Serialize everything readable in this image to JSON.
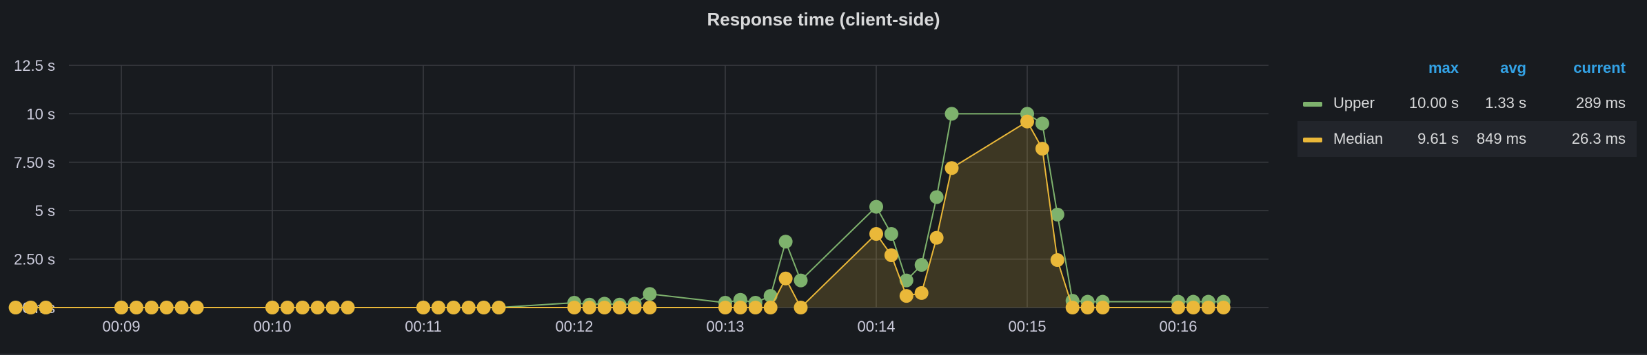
{
  "panel": {
    "title": "Response time (client-side)"
  },
  "legend": {
    "headers": {
      "max": "max",
      "avg": "avg",
      "current": "current"
    },
    "rows": [
      {
        "name": "Upper",
        "max": "10.00 s",
        "avg": "1.33 s",
        "current": "289 ms",
        "color": "#7eb26d"
      },
      {
        "name": "Median",
        "max": "9.61 s",
        "avg": "849 ms",
        "current": "26.3 ms",
        "color": "#eab839"
      }
    ]
  },
  "chart_data": {
    "type": "line",
    "title": "Response time (client-side)",
    "xlabel": "",
    "ylabel": "",
    "y_unit": "s",
    "ylim": [
      0,
      12.5
    ],
    "y_ticks": [
      0,
      2.5,
      5,
      7.5,
      10,
      12.5
    ],
    "y_tick_labels": [
      "0 ms",
      "2.50 s",
      "5 s",
      "7.50 s",
      "10 s",
      "12.5 s"
    ],
    "x_ticks": [
      "00:09",
      "00:10",
      "00:11",
      "00:12",
      "00:13",
      "00:14",
      "00:15",
      "00:16"
    ],
    "x_unit": "mm:ss",
    "x": [
      "00:08.30",
      "00:08.40",
      "00:08.50",
      "00:09.00",
      "00:09.10",
      "00:09.20",
      "00:09.30",
      "00:09.40",
      "00:09.50",
      "00:10.00",
      "00:10.10",
      "00:10.20",
      "00:10.30",
      "00:10.40",
      "00:10.50",
      "00:11.00",
      "00:11.10",
      "00:11.20",
      "00:11.30",
      "00:11.40",
      "00:11.50",
      "00:12.00",
      "00:12.10",
      "00:12.20",
      "00:12.30",
      "00:12.40",
      "00:12.50",
      "00:13.00",
      "00:13.10",
      "00:13.20",
      "00:13.30",
      "00:13.40",
      "00:13.50",
      "00:14.00",
      "00:14.10",
      "00:14.20",
      "00:14.30",
      "00:14.40",
      "00:14.50",
      "00:15.00",
      "00:15.10",
      "00:15.20",
      "00:15.30",
      "00:15.40",
      "00:15.50",
      "00:16.00",
      "00:16.10",
      "00:16.20",
      "00:16.30"
    ],
    "grid": true,
    "legend_position": "right",
    "series": [
      {
        "name": "Upper",
        "color": "#7eb26d",
        "fill": false,
        "values": [
          0,
          0,
          0,
          0,
          0,
          0,
          0,
          0,
          0,
          0,
          0,
          0,
          0,
          0,
          0,
          0,
          0,
          0,
          0,
          0,
          0,
          0.25,
          0.15,
          0.2,
          0.15,
          0.2,
          0.7,
          0.25,
          0.4,
          0.25,
          0.6,
          3.4,
          1.4,
          5.2,
          3.8,
          1.4,
          2.2,
          5.7,
          10.0,
          10.0,
          9.5,
          4.8,
          0.35,
          0.3,
          0.3,
          0.3,
          0.3,
          0.3,
          0.3
        ]
      },
      {
        "name": "Median",
        "color": "#eab839",
        "fill": true,
        "values": [
          0,
          0,
          0,
          0,
          0,
          0,
          0,
          0,
          0,
          0,
          0,
          0,
          0,
          0,
          0,
          0,
          0,
          0,
          0,
          0,
          0,
          0,
          0,
          0,
          0,
          0,
          0,
          0,
          0,
          0,
          0,
          1.5,
          0,
          3.8,
          2.7,
          0.6,
          0.75,
          3.6,
          7.2,
          9.6,
          8.2,
          2.45,
          0,
          0,
          0,
          0,
          0,
          0,
          0
        ]
      }
    ]
  }
}
